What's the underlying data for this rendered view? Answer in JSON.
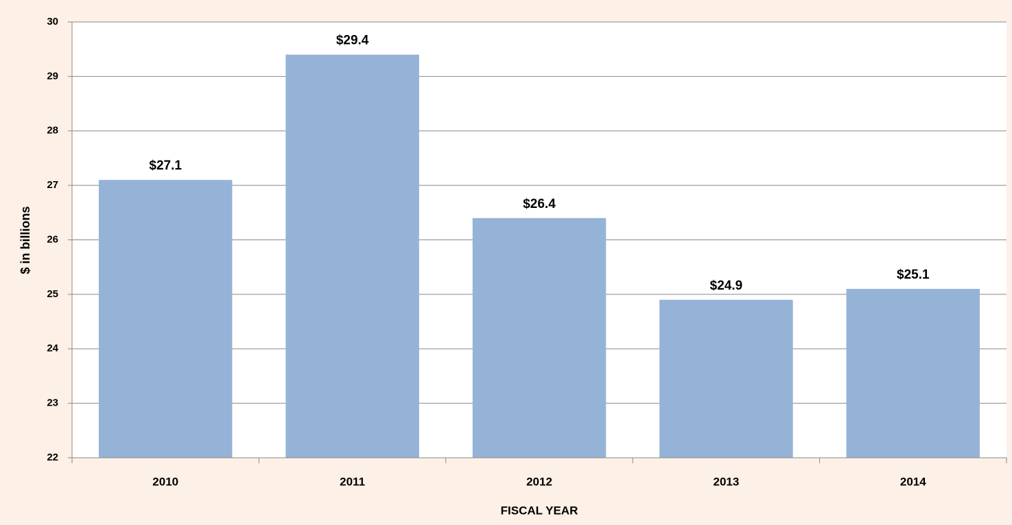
{
  "chart_data": {
    "type": "bar",
    "categories": [
      "2010",
      "2011",
      "2012",
      "2013",
      "2014"
    ],
    "values": [
      27.1,
      29.4,
      26.4,
      24.9,
      25.1
    ],
    "value_labels": [
      "$27.1",
      "$29.4",
      "$26.4",
      "$24.9",
      "$25.1"
    ],
    "color": "#95b3d7",
    "ylim": [
      22,
      30
    ],
    "yticks": [
      22,
      23,
      24,
      25,
      26,
      27,
      28,
      29,
      30
    ],
    "grid": true,
    "xlabel": "FISCAL YEAR",
    "ylabel": "$ in billions"
  }
}
